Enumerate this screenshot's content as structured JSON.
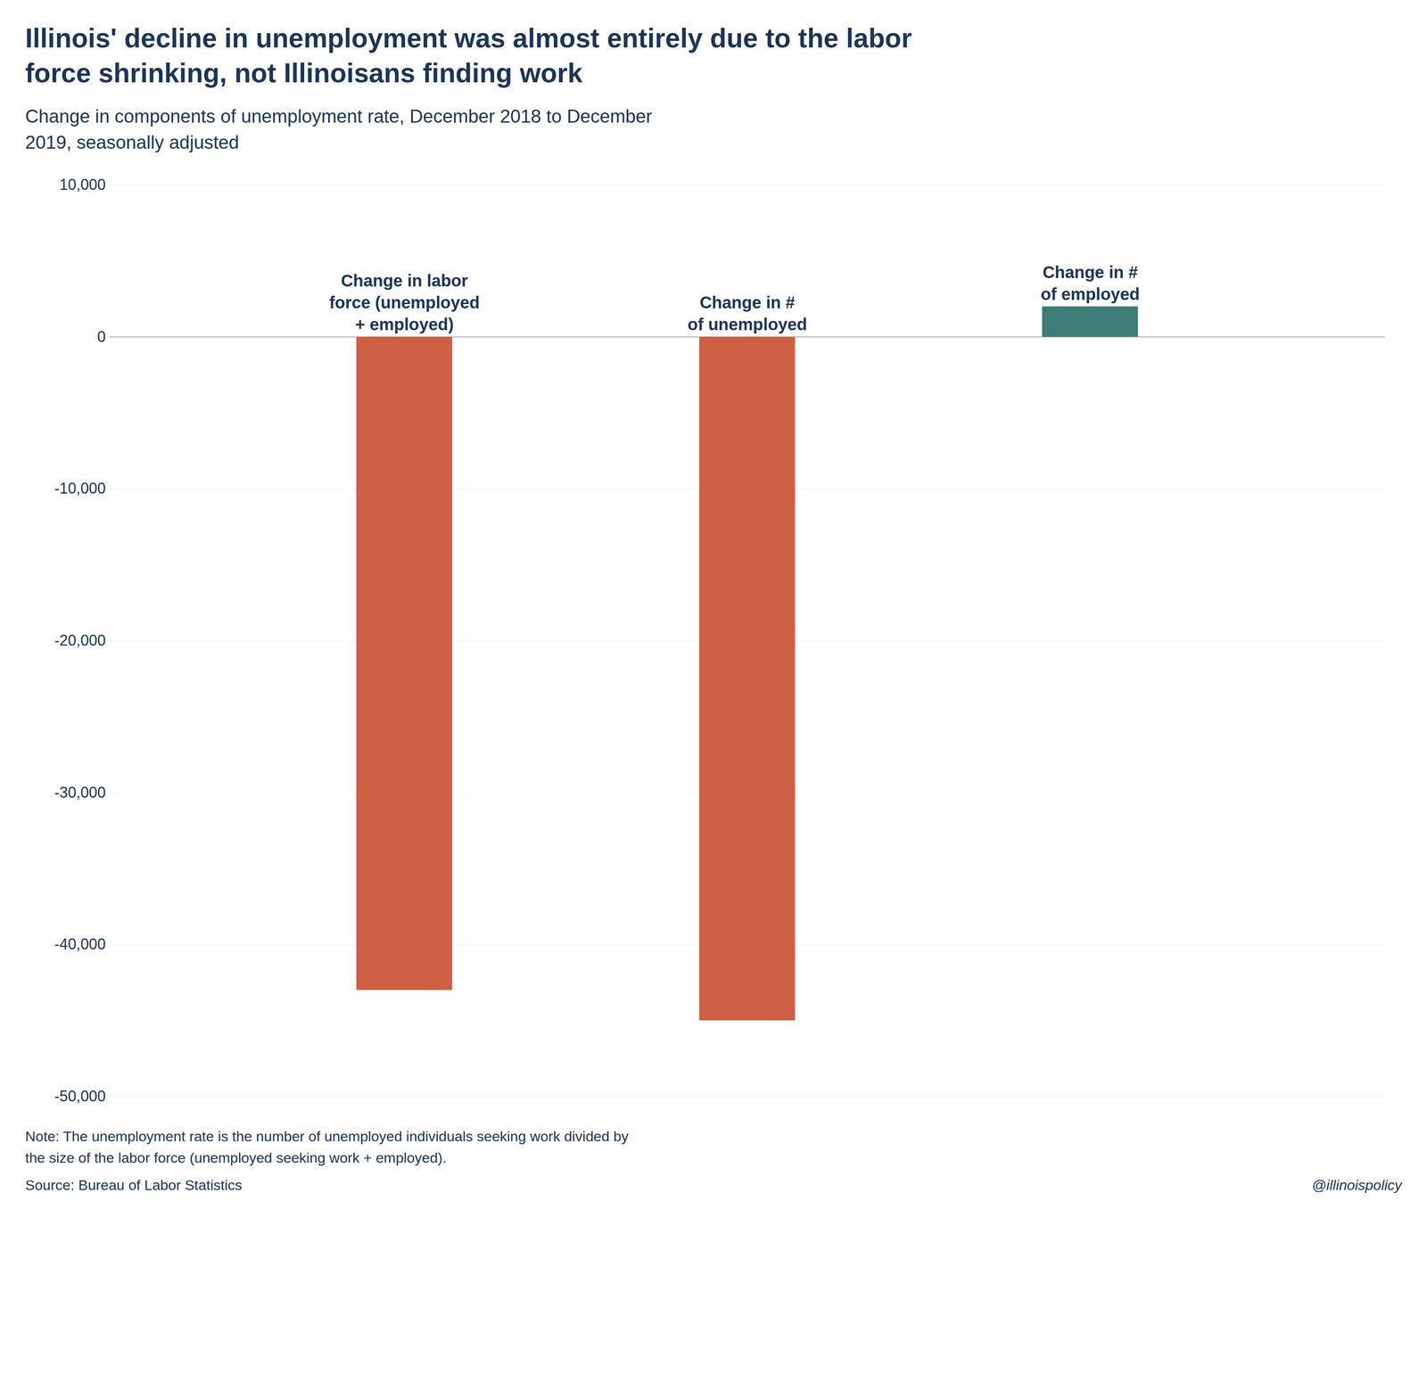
{
  "chart_data": {
    "type": "bar",
    "title": "Illinois' decline in unemployment was almost entirely due to the labor\nforce shrinking, not Illinoisans finding work",
    "subtitle": "Change in components of unemployment rate, December 2018 to December\n2019, seasonally adjusted",
    "categories": [
      "Change in labor\nforce (unemployed\n+ employed)",
      "Change in #\nof unemployed",
      "Change in #\nof employed"
    ],
    "values": [
      -43000,
      -45000,
      2000
    ],
    "colors": [
      "#cd5f45",
      "#cd5f45",
      "#3d7d76"
    ],
    "ylim": [
      -50000,
      10000
    ],
    "yticks": [
      {
        "value": -50000,
        "label": "-50,000"
      },
      {
        "value": -40000,
        "label": "-40,000"
      },
      {
        "value": -30000,
        "label": "-30,000"
      },
      {
        "value": -20000,
        "label": "-20,000"
      },
      {
        "value": -10000,
        "label": "-10,000"
      },
      0,
      {
        "value": 10000,
        "label": "10,000"
      }
    ],
    "grid": true,
    "note": "Note: The unemployment rate is the number of unemployed individuals seeking work divided by\nthe size of the labor force (unemployed seeking work + employed).",
    "source": "Source: Bureau of Labor Statistics",
    "watermark": "@illinoispolicy"
  }
}
